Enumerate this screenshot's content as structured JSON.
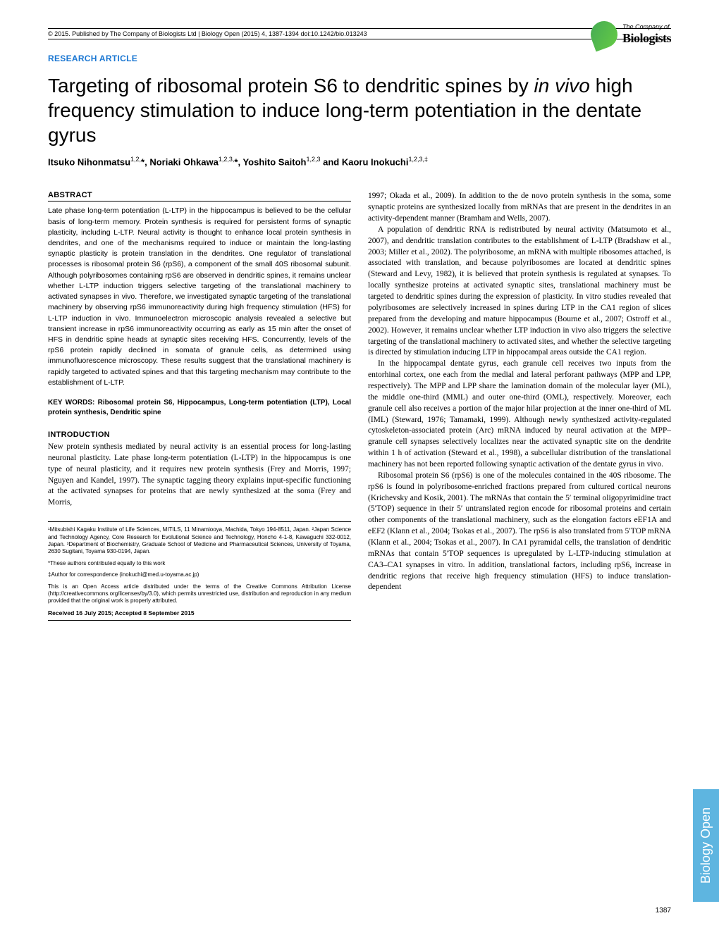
{
  "header": {
    "left": "© 2015. Published by The Company of Biologists Ltd | Biology Open (2015) 4, 1387-1394 doi:10.1242/bio.013243"
  },
  "logo": {
    "line1": "The Company of",
    "line2": "Biologists"
  },
  "article_type": "RESEARCH ARTICLE",
  "title_pre": "Targeting of ribosomal protein S6 to dendritic spines by ",
  "title_ital": "in vivo",
  "title_post": " high frequency stimulation to induce long-term potentiation in the dentate gyrus",
  "authors": "Itsuko Nihonmatsu",
  "authors_sup1": "1,2,",
  "authors2": "*, Noriaki Ohkawa",
  "authors_sup2": "1,2,3,",
  "authors3": "*, Yoshito Saitoh",
  "authors_sup3": "1,2,3",
  "authors4": " and Kaoru Inokuchi",
  "authors_sup4": "1,2,3,‡",
  "abstract_heading": "ABSTRACT",
  "abstract": "Late phase long-term potentiation (L-LTP) in the hippocampus is believed to be the cellular basis of long-term memory. Protein synthesis is required for persistent forms of synaptic plasticity, including L-LTP. Neural activity is thought to enhance local protein synthesis in dendrites, and one of the mechanisms required to induce or maintain the long-lasting synaptic plasticity is protein translation in the dendrites. One regulator of translational processes is ribosomal protein S6 (rpS6), a component of the small 40S ribosomal subunit. Although polyribosomes containing rpS6 are observed in dendritic spines, it remains unclear whether L-LTP induction triggers selective targeting of the translational machinery to activated synapses in vivo. Therefore, we investigated synaptic targeting of the translational machinery by observing rpS6 immunoreactivity during high frequency stimulation (HFS) for L-LTP induction in vivo. Immunoelectron microscopic analysis revealed a selective but transient increase in rpS6 immunoreactivity occurring as early as 15 min after the onset of HFS in dendritic spine heads at synaptic sites receiving HFS. Concurrently, levels of the rpS6 protein rapidly declined in somata of granule cells, as determined using immunofluorescence microscopy. These results suggest that the translational machinery is rapidly targeted to activated spines and that this targeting mechanism may contribute to the establishment of L-LTP.",
  "keywords": "KEY WORDS: Ribosomal protein S6, Hippocampus, Long-term potentiation (LTP), Local protein synthesis, Dendritic spine",
  "intro_heading": "INTRODUCTION",
  "intro_p1": "New protein synthesis mediated by neural activity is an essential process for long-lasting neuronal plasticity. Late phase long-term potentiation (L-LTP) in the hippocampus is one type of neural plasticity, and it requires new protein synthesis (Frey and Morris, 1997; Nguyen and Kandel, 1997). The synaptic tagging theory explains input-specific functioning at the activated synapses for proteins that are newly synthesized at the soma (Frey and Morris,",
  "aff1": "¹Mitsubishi Kagaku Institute of Life Sciences, MITILS, 11 Minamiooya, Machida, Tokyo 194-8511, Japan. ²Japan Science and Technology Agency, Core Research for Evolutional Science and Technology, Honcho 4-1-8, Kawaguchi 332-0012, Japan. ³Department of Biochemistry, Graduate School of Medicine and Pharmaceutical Sciences, University of Toyama, 2630 Sugitani, Toyama 930-0194, Japan.",
  "aff_equal": "*These authors contributed equally to this work",
  "aff_corr": "‡Author for correspondence (inokuchi@med.u-toyama.ac.jp)",
  "aff_license": "This is an Open Access article distributed under the terms of the Creative Commons Attribution License (http://creativecommons.org/licenses/by/3.0), which permits unrestricted use, distribution and reproduction in any medium provided that the original work is properly attributed.",
  "received": "Received 16 July 2015; Accepted 8 September 2015",
  "col2_p1": "1997; Okada et al., 2009). In addition to the de novo protein synthesis in the soma, some synaptic proteins are synthesized locally from mRNAs that are present in the dendrites in an activity-dependent manner (Bramham and Wells, 2007).",
  "col2_p2": "A population of dendritic RNA is redistributed by neural activity (Matsumoto et al., 2007), and dendritic translation contributes to the establishment of L-LTP (Bradshaw et al., 2003; Miller et al., 2002). The polyribosome, an mRNA with multiple ribosomes attached, is associated with translation, and because polyribosomes are located at dendritic spines (Steward and Levy, 1982), it is believed that protein synthesis is regulated at synapses. To locally synthesize proteins at activated synaptic sites, translational machinery must be targeted to dendritic spines during the expression of plasticity. In vitro studies revealed that polyribosomes are selectively increased in spines during LTP in the CA1 region of slices prepared from the developing and mature hippocampus (Bourne et al., 2007; Ostroff et al., 2002). However, it remains unclear whether LTP induction in vivo also triggers the selective targeting of the translational machinery to activated sites, and whether the selective targeting is directed by stimulation inducing LTP in hippocampal areas outside the CA1 region.",
  "col2_p3": "In the hippocampal dentate gyrus, each granule cell receives two inputs from the entorhinal cortex, one each from the medial and lateral perforant pathways (MPP and LPP, respectively). The MPP and LPP share the lamination domain of the molecular layer (ML), the middle one-third (MML) and outer one-third (OML), respectively. Moreover, each granule cell also receives a portion of the major hilar projection at the inner one-third of ML (IML) (Steward, 1976; Tamamaki, 1999). Although newly synthesized activity-regulated cytoskeleton-associated protein (Arc) mRNA induced by neural activation at the MPP–granule cell synapses selectively localizes near the activated synaptic site on the dendrite within 1 h of activation (Steward et al., 1998), a subcellular distribution of the translational machinery has not been reported following synaptic activation of the dentate gyrus in vivo.",
  "col2_p4": "Ribosomal protein S6 (rpS6) is one of the molecules contained in the 40S ribosome. The rpS6 is found in polyribosome-enriched fractions prepared from cultured cortical neurons (Krichevsky and Kosik, 2001). The mRNAs that contain the 5′ terminal oligopyrimidine tract (5′TOP) sequence in their 5′ untranslated region encode for ribosomal proteins and certain other components of the translational machinery, such as the elongation factors eEF1A and eEF2 (Klann et al., 2004; Tsokas et al., 2007). The rpS6 is also translated from 5′TOP mRNA (Klann et al., 2004; Tsokas et al., 2007). In CA1 pyramidal cells, the translation of dendritic mRNAs that contain 5′TOP sequences is upregulated by L-LTP-inducing stimulation at CA3–CA1 synapses in vitro. In addition, translational factors, including rpS6, increase in dendritic regions that receive high frequency stimulation (HFS) to induce translation-dependent",
  "side_tab": "Biology Open",
  "page_num": "1387"
}
